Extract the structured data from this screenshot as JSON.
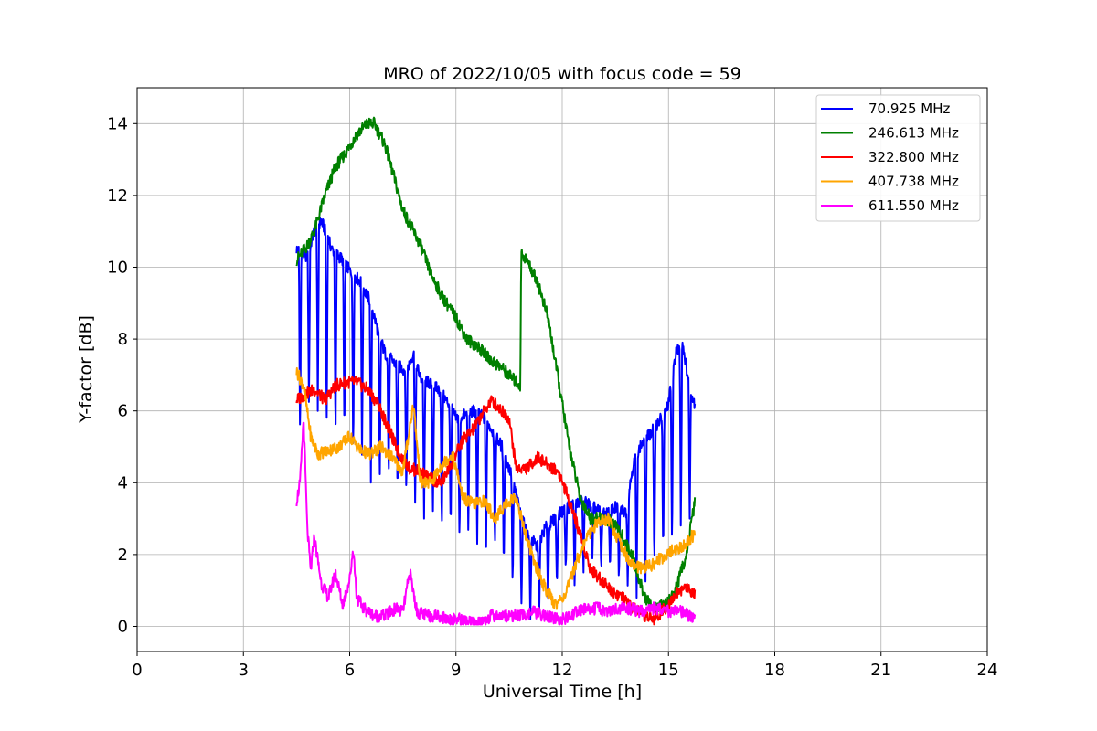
{
  "chart_data": {
    "type": "line",
    "title": "MRO of 2022/10/05 with focus code = 59",
    "xlabel": "Universal Time [h]",
    "ylabel": "Y-factor [dB]",
    "xlim": [
      0,
      24
    ],
    "ylim": [
      -0.7,
      15
    ],
    "xticks": [
      0,
      3,
      6,
      9,
      12,
      15,
      18,
      21,
      24
    ],
    "yticks": [
      0,
      2,
      4,
      6,
      8,
      10,
      12,
      14
    ],
    "grid": true,
    "legend_position": "top-right",
    "series": [
      {
        "name": " 70.925 MHz",
        "color": "#0000ff",
        "x": [
          4.5,
          4.8,
          5.0,
          5.2,
          5.5,
          5.8,
          6.0,
          6.3,
          6.6,
          6.8,
          7.0,
          7.3,
          7.6,
          7.8,
          8.0,
          8.2,
          8.5,
          8.8,
          9.0,
          9.3,
          9.5,
          9.8,
          10.0,
          10.3,
          10.6,
          10.8,
          11.0,
          11.3,
          11.5,
          11.8,
          12.0,
          12.3,
          12.6,
          12.9,
          13.2,
          13.5,
          13.8,
          14.0,
          14.2,
          14.5,
          14.8,
          15.0,
          15.2,
          15.4,
          15.6,
          15.75
        ],
        "values": [
          10.5,
          10.3,
          11.0,
          11.3,
          10.5,
          10.2,
          9.9,
          9.6,
          9.0,
          8.2,
          7.6,
          7.3,
          7.1,
          7.6,
          6.9,
          6.8,
          6.6,
          6.2,
          5.8,
          5.9,
          6.0,
          5.8,
          5.5,
          5.0,
          4.1,
          3.2,
          2.6,
          2.2,
          2.7,
          3.0,
          3.2,
          3.4,
          3.5,
          3.3,
          3.1,
          3.3,
          3.2,
          4.5,
          5.0,
          5.4,
          5.8,
          6.2,
          7.6,
          7.9,
          6.6,
          6.2
        ],
        "dips": [
          {
            "x": 4.6,
            "low": 5.0
          },
          {
            "x": 4.85,
            "low": 6.0
          },
          {
            "x": 5.1,
            "low": 6.0
          },
          {
            "x": 5.35,
            "low": 5.5
          },
          {
            "x": 5.6,
            "low": 5.0
          },
          {
            "x": 5.85,
            "low": 5.0
          },
          {
            "x": 6.1,
            "low": 4.5
          },
          {
            "x": 6.35,
            "low": 4.5
          },
          {
            "x": 6.6,
            "low": 4.0
          },
          {
            "x": 6.85,
            "low": 4.0
          },
          {
            "x": 7.1,
            "low": 4.0
          },
          {
            "x": 7.35,
            "low": 3.5
          },
          {
            "x": 7.6,
            "low": 3.5
          },
          {
            "x": 7.85,
            "low": 3.2
          },
          {
            "x": 8.1,
            "low": 3.0
          },
          {
            "x": 8.35,
            "low": 3.0
          },
          {
            "x": 8.6,
            "low": 2.5
          },
          {
            "x": 8.85,
            "low": 2.5
          },
          {
            "x": 9.1,
            "low": 2.2
          },
          {
            "x": 9.35,
            "low": 2.5
          },
          {
            "x": 9.6,
            "low": 2.3
          },
          {
            "x": 9.85,
            "low": 2.0
          },
          {
            "x": 10.1,
            "low": 2.0
          },
          {
            "x": 10.35,
            "low": 1.5
          },
          {
            "x": 10.6,
            "low": 1.0
          },
          {
            "x": 10.85,
            "low": 0.5
          },
          {
            "x": 11.1,
            "low": 0.2
          },
          {
            "x": 11.35,
            "low": 0.3
          },
          {
            "x": 11.6,
            "low": 0.5
          },
          {
            "x": 11.85,
            "low": 1.0
          },
          {
            "x": 12.1,
            "low": 1.5
          },
          {
            "x": 12.35,
            "low": 1.0
          },
          {
            "x": 12.6,
            "low": 1.5
          },
          {
            "x": 12.85,
            "low": 1.8
          },
          {
            "x": 13.1,
            "low": 1.5
          },
          {
            "x": 13.35,
            "low": 1.5
          },
          {
            "x": 13.6,
            "low": 1.2
          },
          {
            "x": 13.85,
            "low": 1.0
          },
          {
            "x": 14.1,
            "low": 0.8
          },
          {
            "x": 14.35,
            "low": 1.0
          },
          {
            "x": 14.6,
            "low": 1.5
          },
          {
            "x": 14.85,
            "low": 1.8
          },
          {
            "x": 15.1,
            "low": 2.0
          },
          {
            "x": 15.35,
            "low": 2.5
          },
          {
            "x": 15.6,
            "low": 3.0
          }
        ]
      },
      {
        "name": "246.613 MHz",
        "color": "#008000",
        "x": [
          4.5,
          4.8,
          5.0,
          5.3,
          5.6,
          5.9,
          6.2,
          6.5,
          6.7,
          7.0,
          7.2,
          7.5,
          7.8,
          8.0,
          8.3,
          8.6,
          9.0,
          9.3,
          9.6,
          10.0,
          10.3,
          10.6,
          10.82,
          10.84,
          11.0,
          11.3,
          11.6,
          11.9,
          12.2,
          12.5,
          12.8,
          13.1,
          13.4,
          13.7,
          14.0,
          14.2,
          14.4,
          14.6,
          14.9,
          15.2,
          15.5,
          15.75
        ],
        "values": [
          10.2,
          10.6,
          11.0,
          12.0,
          12.8,
          13.2,
          13.7,
          14.0,
          14.0,
          13.4,
          12.7,
          11.6,
          11.0,
          10.6,
          9.8,
          9.2,
          8.6,
          8.0,
          7.8,
          7.4,
          7.2,
          6.9,
          6.7,
          10.4,
          10.2,
          9.6,
          8.6,
          6.8,
          5.0,
          3.6,
          3.0,
          3.0,
          2.9,
          2.5,
          1.9,
          1.2,
          0.7,
          0.5,
          0.6,
          1.0,
          2.0,
          3.5
        ]
      },
      {
        "name": "322.800 MHz",
        "color": "#ff0000",
        "x": [
          4.5,
          4.8,
          5.0,
          5.3,
          5.6,
          5.9,
          6.2,
          6.5,
          6.8,
          7.1,
          7.4,
          7.7,
          8.0,
          8.3,
          8.6,
          8.9,
          9.2,
          9.5,
          9.8,
          10.0,
          10.2,
          10.4,
          10.5,
          10.7,
          11.0,
          11.3,
          11.6,
          11.9,
          12.2,
          12.5,
          12.8,
          13.1,
          13.4,
          13.7,
          14.0,
          14.3,
          14.6,
          14.9,
          15.2,
          15.5,
          15.75
        ],
        "values": [
          6.3,
          6.5,
          6.6,
          6.3,
          6.7,
          6.8,
          6.8,
          6.6,
          6.2,
          5.5,
          4.8,
          4.4,
          4.3,
          4.1,
          4.0,
          4.6,
          5.2,
          5.5,
          6.0,
          6.3,
          6.1,
          5.9,
          5.8,
          4.4,
          4.4,
          4.7,
          4.5,
          4.3,
          3.5,
          2.6,
          1.6,
          1.3,
          1.0,
          0.8,
          0.5,
          0.3,
          0.2,
          0.5,
          0.9,
          1.1,
          0.9
        ]
      },
      {
        "name": "407.738 MHz",
        "color": "#ffa500",
        "x": [
          4.5,
          4.7,
          4.9,
          5.1,
          5.4,
          5.7,
          6.0,
          6.3,
          6.6,
          6.9,
          7.2,
          7.5,
          7.8,
          8.0,
          8.3,
          8.6,
          8.9,
          9.2,
          9.5,
          9.8,
          10.1,
          10.4,
          10.7,
          10.9,
          11.2,
          11.5,
          11.8,
          12.1,
          12.4,
          12.7,
          13.0,
          13.3,
          13.6,
          13.9,
          14.2,
          14.5,
          14.8,
          15.1,
          15.4,
          15.75
        ],
        "values": [
          7.1,
          6.7,
          5.3,
          4.8,
          4.9,
          5.0,
          5.3,
          4.9,
          4.8,
          5.0,
          4.7,
          4.3,
          6.2,
          4.0,
          4.0,
          4.5,
          4.8,
          3.6,
          3.4,
          3.5,
          3.0,
          3.4,
          3.6,
          2.8,
          1.8,
          1.1,
          0.6,
          0.9,
          1.8,
          2.5,
          2.9,
          3.0,
          2.4,
          1.8,
          1.6,
          1.7,
          1.9,
          2.1,
          2.2,
          2.6
        ]
      },
      {
        "name": "611.550 MHz",
        "color": "#ff00ff",
        "x": [
          4.5,
          4.6,
          4.7,
          4.8,
          4.9,
          5.0,
          5.2,
          5.4,
          5.6,
          5.8,
          6.0,
          6.1,
          6.2,
          6.4,
          6.7,
          7.0,
          7.3,
          7.5,
          7.7,
          7.9,
          8.2,
          8.5,
          8.8,
          9.1,
          9.4,
          9.7,
          10.0,
          10.3,
          10.6,
          10.9,
          11.2,
          11.5,
          11.8,
          12.1,
          12.4,
          12.7,
          13.0,
          13.3,
          13.6,
          13.9,
          14.2,
          14.5,
          14.8,
          15.1,
          15.4,
          15.75
        ],
        "values": [
          3.5,
          4.0,
          5.8,
          2.8,
          1.5,
          2.5,
          1.2,
          0.8,
          1.5,
          0.6,
          1.3,
          2.2,
          0.8,
          0.5,
          0.3,
          0.3,
          0.5,
          0.4,
          1.5,
          0.4,
          0.3,
          0.3,
          0.2,
          0.2,
          0.1,
          0.1,
          0.3,
          0.3,
          0.3,
          0.3,
          0.4,
          0.3,
          0.2,
          0.2,
          0.4,
          0.5,
          0.5,
          0.4,
          0.5,
          0.5,
          0.4,
          0.5,
          0.5,
          0.4,
          0.4,
          0.2
        ]
      }
    ]
  }
}
